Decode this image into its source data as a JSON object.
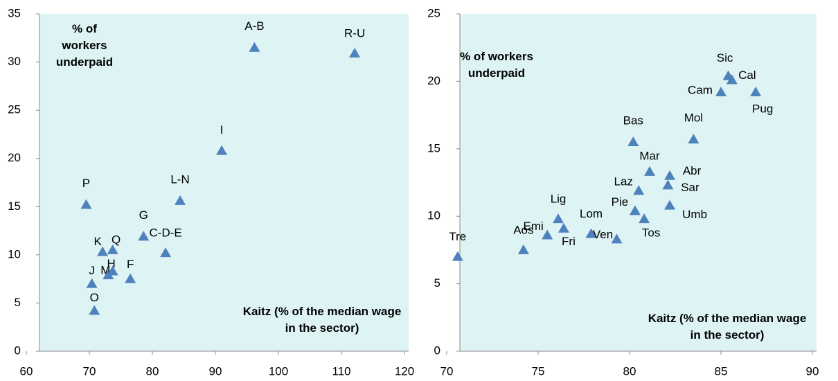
{
  "chart_data": [
    {
      "type": "scatter",
      "ylabel": "% of workers underpaid",
      "xlabel": "Kaitz (% of the median wage in the sector)",
      "labels": [
        "A-B",
        "R-U",
        "I",
        "L-N",
        "P",
        "G",
        "C-D-E",
        "K",
        "Q",
        "M",
        "H",
        "F",
        "J",
        "O"
      ],
      "x": [
        96.2,
        112.1,
        91.0,
        84.4,
        69.5,
        78.6,
        82.1,
        72.1,
        73.7,
        73.0,
        73.7,
        76.5,
        70.4,
        70.8
      ],
      "values": [
        31.5,
        30.9,
        20.8,
        15.6,
        15.2,
        11.9,
        10.2,
        10.3,
        10.5,
        7.9,
        8.3,
        7.5,
        7.0,
        4.2
      ],
      "color": "#4f81bd",
      "xlim": [
        60,
        120
      ],
      "xticks": [
        60,
        70,
        80,
        90,
        100,
        110,
        120
      ],
      "ylim": [
        0,
        35
      ],
      "yticks": [
        0,
        5,
        10,
        15,
        20,
        25,
        30,
        35
      ]
    },
    {
      "type": "scatter",
      "ylabel": "% of workers underpaid",
      "xlabel": "Kaitz (% of the median wage in the sector)",
      "labels": [
        "Tre",
        "Aos",
        "Emi",
        "Lig",
        "Fri",
        "Lom",
        "Ven",
        "Pie",
        "Tos",
        "Laz",
        "Bas",
        "Mar",
        "Abr",
        "Sar",
        "Umb",
        "Mol",
        "Cam",
        "Sic",
        "Cal",
        "Pug"
      ],
      "x": [
        70.6,
        74.2,
        75.5,
        76.1,
        76.4,
        77.9,
        79.3,
        80.3,
        80.8,
        80.5,
        80.2,
        81.1,
        82.2,
        82.1,
        82.2,
        83.5,
        85.0,
        85.4,
        85.6,
        86.9
      ],
      "values": [
        7.0,
        7.5,
        8.6,
        9.8,
        9.1,
        8.7,
        8.3,
        10.4,
        9.8,
        11.9,
        15.5,
        13.3,
        13.0,
        12.3,
        10.8,
        15.7,
        19.2,
        20.4,
        20.1,
        19.2
      ],
      "color": "#4f81bd",
      "xlim": [
        70,
        90
      ],
      "xticks": [
        70,
        75,
        80,
        85,
        90
      ],
      "ylim": [
        0,
        25
      ],
      "yticks": [
        0,
        5,
        10,
        15,
        20,
        25
      ]
    }
  ]
}
